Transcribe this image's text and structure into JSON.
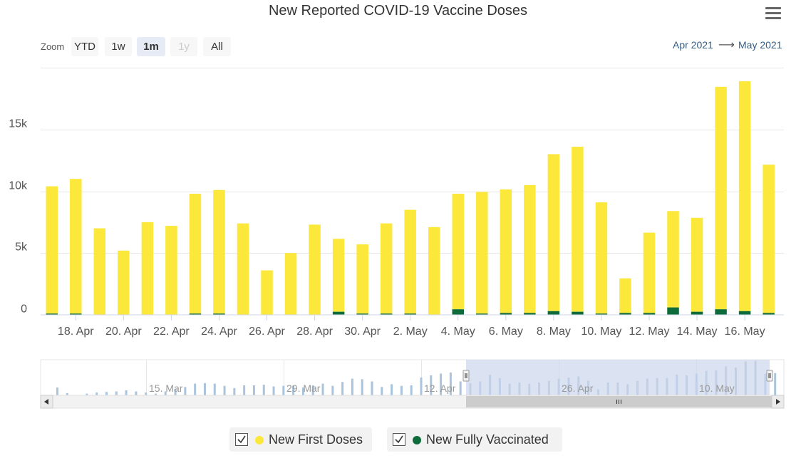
{
  "title": "New Reported COVID-19 Vaccine Doses",
  "zoom": {
    "label": "Zoom",
    "buttons": [
      "YTD",
      "1w",
      "1m",
      "1y",
      "All"
    ],
    "active": "1m",
    "disabled": [
      "1y"
    ]
  },
  "range": {
    "from": "Apr 2021",
    "arrow": "⟶",
    "to": "May 2021"
  },
  "colors": {
    "first": "#fce83a",
    "full": "#0e6b3a",
    "navigator_series": "#a9c4dc",
    "navigator_mask": "#ccd6eb"
  },
  "legend": [
    {
      "label": "New First Doses",
      "color": "#fce83a"
    },
    {
      "label": "New Fully Vaccinated",
      "color": "#0e6b3a"
    }
  ],
  "chart_data": {
    "type": "bar",
    "stacked": true,
    "title": "New Reported COVID-19 Vaccine Doses",
    "x_tick_labels": [
      "18. Apr",
      "20. Apr",
      "22. Apr",
      "24. Apr",
      "26. Apr",
      "28. Apr",
      "30. Apr",
      "2. May",
      "4. May",
      "6. May",
      "8. May",
      "10. May",
      "12. May",
      "14. May",
      "16. May"
    ],
    "y_tick_labels": [
      "0",
      "5k",
      "10k",
      "15k"
    ],
    "ylim": [
      0,
      20000
    ],
    "categories": [
      "17 Apr",
      "18 Apr",
      "19 Apr",
      "20 Apr",
      "21 Apr",
      "22 Apr",
      "23 Apr",
      "24 Apr",
      "25 Apr",
      "26 Apr",
      "27 Apr",
      "28 Apr",
      "29 Apr",
      "30 Apr",
      "1 May",
      "2 May",
      "3 May",
      "4 May",
      "5 May",
      "6 May",
      "7 May",
      "8 May",
      "9 May",
      "10 May",
      "11 May",
      "12 May",
      "13 May",
      "14 May",
      "15 May",
      "16 May",
      "17 May"
    ],
    "series": [
      {
        "name": "New Fully Vaccinated",
        "values": [
          100,
          100,
          0,
          0,
          0,
          0,
          100,
          100,
          0,
          0,
          0,
          0,
          250,
          100,
          100,
          100,
          0,
          450,
          100,
          150,
          150,
          300,
          250,
          100,
          150,
          150,
          600,
          250,
          450,
          300,
          150
        ]
      },
      {
        "name": "New First Doses",
        "values": [
          10300,
          10900,
          7000,
          5200,
          7500,
          7200,
          9700,
          10000,
          7400,
          3600,
          5000,
          7300,
          5900,
          5600,
          7300,
          8400,
          7100,
          9350,
          9850,
          10000,
          10350,
          12700,
          13350,
          9000,
          2800,
          6500,
          7800,
          7600,
          18000,
          18600,
          12000
        ]
      }
    ],
    "navigator": {
      "tick_labels": [
        "15. Mar",
        "29. Mar",
        "12. Apr",
        "26. Apr",
        "10. May"
      ],
      "values": [
        700,
        200,
        0,
        150,
        250,
        300,
        350,
        450,
        350,
        250,
        150,
        350,
        550,
        750,
        1050,
        1100,
        1050,
        850,
        650,
        900,
        900,
        950,
        800,
        850,
        850,
        700,
        900,
        1050,
        850,
        1200,
        1500,
        1450,
        1250,
        750,
        1000,
        850,
        900,
        1600,
        1800,
        1950,
        2050,
        1250,
        1100,
        1250,
        1850,
        1550,
        1050,
        1150,
        1050,
        1150,
        1300,
        1500,
        1600,
        1700,
        1300,
        550,
        1150,
        1150,
        1000,
        1300,
        1500,
        1550,
        1550,
        1850,
        1800,
        1950,
        2200,
        2250,
        2600,
        2500,
        3050,
        3100,
        1950,
        2000
      ]
    }
  }
}
